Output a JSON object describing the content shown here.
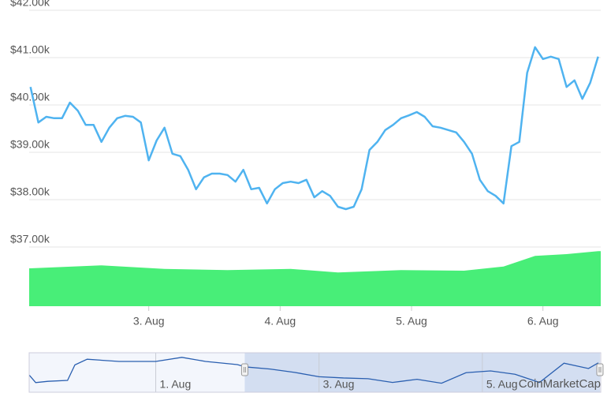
{
  "chart_data": {
    "type": "line",
    "x": [
      2.1,
      2.16,
      2.22,
      2.28,
      2.34,
      2.4,
      2.46,
      2.52,
      2.58,
      2.64,
      2.7,
      2.76,
      2.82,
      2.88,
      2.94,
      3.0,
      3.06,
      3.12,
      3.18,
      3.24,
      3.3,
      3.36,
      3.42,
      3.48,
      3.54,
      3.6,
      3.66,
      3.72,
      3.78,
      3.84,
      3.9,
      3.96,
      4.02,
      4.08,
      4.14,
      4.2,
      4.26,
      4.32,
      4.38,
      4.44,
      4.5,
      4.56,
      4.62,
      4.68,
      4.74,
      4.8,
      4.86,
      4.92,
      4.98,
      5.04,
      5.1,
      5.16,
      5.22,
      5.28,
      5.34,
      5.4,
      5.46,
      5.52,
      5.58,
      5.64,
      5.7,
      5.76,
      5.82,
      5.88,
      5.94,
      6.0,
      6.06,
      6.12,
      6.18,
      6.24,
      6.3,
      6.36,
      6.42
    ],
    "series": [
      {
        "color": "#4fb3f0",
        "values": [
          40380,
          39630,
          39750,
          39720,
          39720,
          40050,
          39880,
          39580,
          39580,
          39220,
          39520,
          39720,
          39770,
          39750,
          39630,
          38830,
          39250,
          39520,
          38970,
          38920,
          38630,
          38220,
          38470,
          38550,
          38550,
          38520,
          38380,
          38630,
          38220,
          38250,
          37920,
          38220,
          38350,
          38380,
          38350,
          38420,
          38050,
          38180,
          38080,
          37850,
          37800,
          37850,
          38220,
          39050,
          39220,
          39470,
          39580,
          39720,
          39780,
          39850,
          39750,
          39550,
          39520,
          39470,
          39420,
          39220,
          38970,
          38420,
          38180,
          38080,
          37920,
          39130,
          39220,
          40680,
          41220,
          40970,
          41020,
          40970,
          40380,
          40520,
          40130,
          40470,
          41020
        ]
      }
    ],
    "xlim": [
      2.09,
      6.44
    ],
    "xticks": [
      {
        "value": 3,
        "label": "3. Aug"
      },
      {
        "value": 4,
        "label": "4. Aug"
      },
      {
        "value": 5,
        "label": "5. Aug"
      },
      {
        "value": 6,
        "label": "6. Aug"
      }
    ],
    "ylim": [
      37000,
      42000
    ],
    "yticks": [
      {
        "value": 37000,
        "label": "$37.00k"
      },
      {
        "value": 38000,
        "label": "$38.00k"
      },
      {
        "value": 39000,
        "label": "$39.00k"
      },
      {
        "value": 40000,
        "label": "$40.00k"
      },
      {
        "value": 41000,
        "label": "$41.00k"
      },
      {
        "value": 42000,
        "label": "$42.00k"
      }
    ],
    "grid": true,
    "area": {
      "color": "#48ee78",
      "axis": "y2",
      "y2lim": [
        0,
        100
      ],
      "x": [
        2.1,
        2.64,
        3.12,
        3.6,
        4.08,
        4.44,
        4.92,
        5.4,
        5.7,
        5.94,
        6.18,
        6.42
      ],
      "values": [
        64,
        69,
        63,
        61,
        63,
        57,
        61,
        60,
        67,
        85,
        88,
        93
      ]
    },
    "navigator": {
      "color": "#2a5fb0",
      "x": [
        -0.55,
        -0.47,
        -0.32,
        -0.08,
        0.01,
        0.16,
        0.55,
        1.0,
        1.32,
        1.61,
        2.0,
        2.1,
        2.4,
        2.7,
        3.0,
        3.3,
        3.6,
        3.9,
        4.2,
        4.5,
        4.8,
        5.1,
        5.4,
        5.7,
        6.0,
        6.3,
        6.42
      ],
      "values": [
        39100,
        37900,
        38100,
        38250,
        40700,
        41600,
        41250,
        41250,
        41900,
        41250,
        40750,
        40380,
        40050,
        39520,
        38830,
        38630,
        38520,
        37920,
        38420,
        37800,
        39470,
        39750,
        39220,
        37920,
        40970,
        40130,
        41020
      ],
      "xlim": [
        -0.55,
        6.45
      ],
      "ylim": [
        37000,
        42000
      ],
      "xticks": [
        {
          "value": 1,
          "label": "1. Aug"
        },
        {
          "value": 3,
          "label": "3. Aug"
        },
        {
          "value": 5,
          "label": "5. Aug"
        }
      ]
    },
    "watermark": "CoinMarketCap"
  }
}
